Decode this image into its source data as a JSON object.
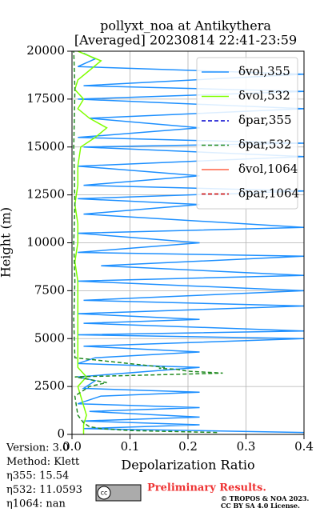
{
  "chart_data": {
    "type": "line",
    "orientation": "horizontal",
    "title": [
      "pollyxt_noa at Antikythera",
      "[Averaged] 20230814 22:41-23:59"
    ],
    "xlabel": "Depolarization Ratio",
    "ylabel": "Height (m)",
    "xlim": [
      0,
      0.4
    ],
    "xticks": [
      {
        "value": 0,
        "label": "0.0"
      },
      0.1,
      0.2,
      0.3,
      0.4
    ],
    "ylim": [
      0,
      20000
    ],
    "yticks": [
      0,
      2500,
      5000,
      7500,
      10000,
      12500,
      15000,
      17500,
      20000
    ],
    "grid": true,
    "legend": "upper right",
    "series": [
      {
        "name": "δvol,355",
        "color": "#1e90ff",
        "dash": false,
        "heights": [
          100,
          300,
          500,
          700,
          900,
          1200,
          1400,
          1600,
          2000,
          2200,
          2400,
          2800,
          3000,
          3500,
          3700,
          4000,
          4300,
          4600,
          5000,
          5200,
          5400,
          5800,
          6000,
          6300,
          6700,
          7000,
          7500,
          8000,
          8300,
          8800,
          9300,
          9500,
          10000,
          10500,
          10800,
          11500,
          12000,
          12300,
          12700,
          13000,
          13500,
          14000,
          14500,
          15000,
          15200,
          15500,
          16000,
          16500,
          17000,
          17500,
          17900,
          18200,
          18800,
          19200,
          19600,
          19900
        ],
        "values": [
          0.4,
          0.02,
          0.22,
          0.02,
          0.22,
          0.03,
          0.22,
          0.01,
          0.05,
          0.22,
          0.02,
          0.04,
          0.01,
          0.22,
          0.01,
          0.04,
          0.22,
          0.02,
          0.4,
          0.01,
          0.4,
          0.02,
          0.22,
          0.01,
          0.4,
          0.02,
          0.4,
          0.01,
          0.4,
          0.05,
          0.4,
          0.01,
          0.22,
          0.01,
          0.4,
          0.02,
          0.22,
          0.01,
          0.4,
          0.02,
          0.22,
          0.01,
          0.4,
          0.02,
          0.4,
          0.01,
          0.22,
          0.03,
          0.4,
          0.01,
          0.4,
          0.02,
          0.4,
          0.01,
          0.04,
          0.02
        ]
      },
      {
        "name": "δvol,532",
        "color": "#80ff00",
        "dash": false,
        "heights": [
          0,
          500,
          1000,
          1500,
          2000,
          2500,
          3000,
          3500,
          4000,
          5000,
          6000,
          7000,
          8000,
          9000,
          10000,
          11000,
          12000,
          13000,
          14000,
          15000,
          15500,
          16000,
          16500,
          17000,
          17500,
          18000,
          18500,
          19000,
          19500,
          20000
        ],
        "values": [
          0.02,
          0.02,
          0.025,
          0.02,
          0.015,
          0.01,
          0.025,
          0.01,
          0.01,
          0.01,
          0.01,
          0.01,
          0.01,
          0.005,
          0.01,
          0.01,
          0.005,
          0.01,
          0.01,
          0.015,
          0.04,
          0.06,
          0.03,
          0.01,
          0.02,
          0.005,
          0.01,
          0.03,
          0.05,
          0.01
        ]
      },
      {
        "name": "δpar,355",
        "color": "#0000cd",
        "dash": true,
        "heights": [],
        "values": []
      },
      {
        "name": "δpar,532",
        "color": "#228b22",
        "dash": true,
        "heights": [
          100,
          200,
          300,
          400,
          600,
          1000,
          2000,
          2500,
          2700,
          3000,
          3200,
          3300,
          3400,
          3450,
          3500,
          4000,
          6000,
          8000,
          10000,
          12000,
          15000,
          18000,
          20000
        ],
        "values": [
          0.25,
          0.1,
          0.05,
          0.03,
          0.02,
          0.01,
          0.005,
          0.03,
          0.06,
          0.005,
          0.26,
          0.2,
          0.18,
          0.15,
          0.16,
          0.005,
          0.003,
          0.005,
          0.003,
          0.005,
          0.003,
          0.005,
          0.003
        ]
      },
      {
        "name": "δvol,1064",
        "color": "#ff6347",
        "dash": false,
        "heights": [],
        "values": []
      },
      {
        "name": "δpar,1064",
        "color": "#cc0000",
        "dash": true,
        "heights": [],
        "values": []
      }
    ]
  },
  "info": [
    "Version: 3.0",
    "Method: Klett",
    "η355:  15.54",
    "η532: 11.0593",
    "η1064:    nan"
  ],
  "logo": {
    "cc": "cc",
    "text": "Preliminary Results.",
    "copyright": "© TROPOS & NOA 2023.",
    "license": "CC BY SA 4.0 License."
  }
}
